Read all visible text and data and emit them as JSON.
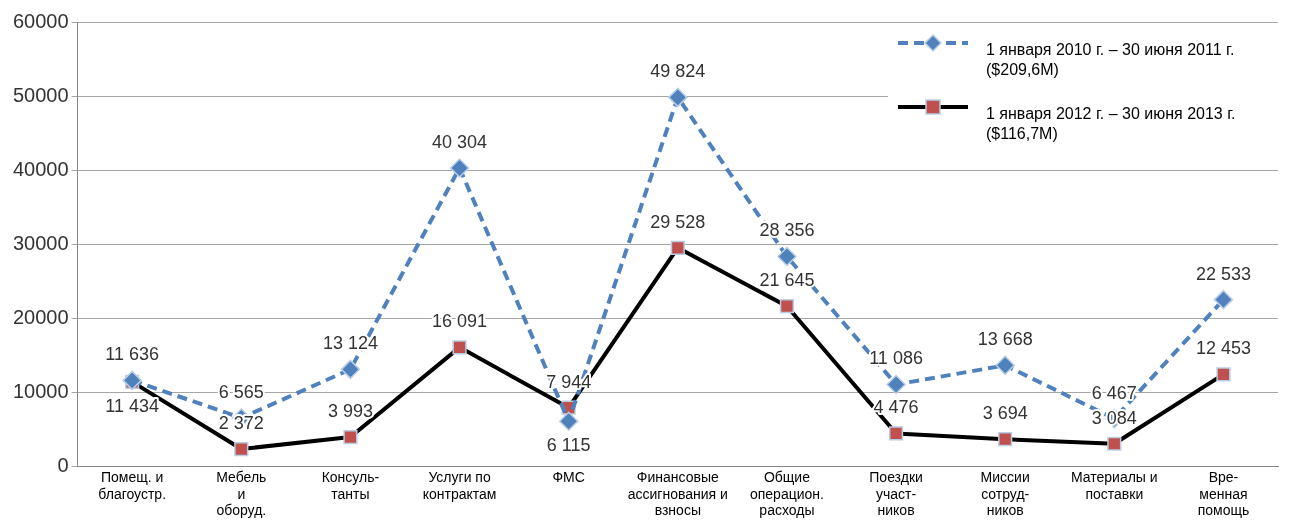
{
  "chart_data": {
    "type": "line",
    "categories": [
      "Помещ. и\nблагоустр.",
      "Мебель\nи\nоборуд.",
      "Консуль-\nтанты",
      "Услуги по\nконтрактам",
      "ФМС",
      "Финансовые\nассигнования и\nвзносы",
      "Общие\nоперацион.\nрасходы",
      "Поездки\nучаст-\nников",
      "Миссии\nсотруд-\nников",
      "Материалы и\nпоставки",
      "Вре-\nменная\nпомощь"
    ],
    "series": [
      {
        "name": "1 января 2010 г. – 30 июня 2011 г. ($209,6M)",
        "color": "#4f81bd",
        "marker": "diamond",
        "line_style": "dashed",
        "values": [
          11636,
          6565,
          13124,
          40304,
          6115,
          49824,
          28356,
          11086,
          13668,
          6467,
          22533
        ]
      },
      {
        "name": "1 января 2012 г. – 30 июня 2013 г. ($116,7M)",
        "color": "#000000",
        "colors": [
          "#c0504d",
          "#c0504d",
          "#c0504d",
          "#c0504d",
          "#c0504d",
          "#c0504d",
          "#c0504d",
          "#c0504d",
          "#c0504d",
          "#c0504d",
          "#c0504d"
        ],
        "marker": "square",
        "line_style": "solid",
        "values": [
          11434,
          2372,
          3993,
          16091,
          7944,
          29528,
          21645,
          4476,
          3694,
          3084,
          12453
        ]
      }
    ],
    "ylim": [
      0,
      60000
    ],
    "yticks": [
      0,
      10000,
      20000,
      30000,
      40000,
      50000,
      60000
    ],
    "grid": "y",
    "legend": "top right",
    "data_labels": true
  }
}
